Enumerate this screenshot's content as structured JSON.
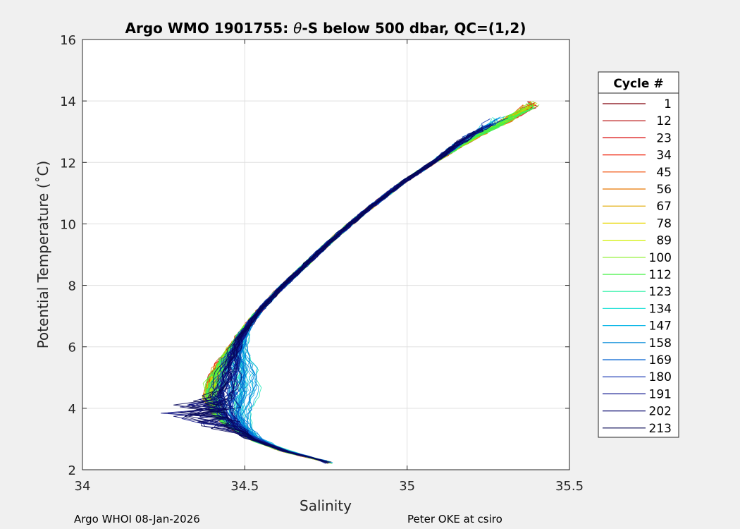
{
  "chart_data": {
    "type": "line",
    "title_prefix": "Argo WMO 1901755: ",
    "title_theta": "θ",
    "title_suffix": "-S below 500 dbar,  QC=(1,2)",
    "xlabel": "Salinity",
    "ylabel": "Potential Temperature (˚C)",
    "xlim": [
      34,
      35.5
    ],
    "ylim": [
      2,
      16
    ],
    "xticks": [
      34,
      34.5,
      35,
      35.5
    ],
    "xtick_labels": [
      "34",
      "34.5",
      "35",
      "35.5"
    ],
    "yticks": [
      2,
      4,
      6,
      8,
      10,
      12,
      14,
      16
    ],
    "ytick_labels": [
      "2",
      "4",
      "6",
      "8",
      "10",
      "12",
      "14",
      "16"
    ],
    "grid": true,
    "legend": {
      "title": "Cycle #",
      "placement": "outside-right",
      "entries": [
        {
          "label": "1",
          "color": "#80000a"
        },
        {
          "label": "12",
          "color": "#b40000"
        },
        {
          "label": "23",
          "color": "#d70000"
        },
        {
          "label": "34",
          "color": "#ee1800"
        },
        {
          "label": "45",
          "color": "#f04a00"
        },
        {
          "label": "56",
          "color": "#e87800"
        },
        {
          "label": "67",
          "color": "#e0a800"
        },
        {
          "label": "78",
          "color": "#e8d800"
        },
        {
          "label": "89",
          "color": "#d0f000"
        },
        {
          "label": "100",
          "color": "#88f020"
        },
        {
          "label": "112",
          "color": "#40f040"
        },
        {
          "label": "123",
          "color": "#20f0a0"
        },
        {
          "label": "134",
          "color": "#20e0d8"
        },
        {
          "label": "147",
          "color": "#10b8e8"
        },
        {
          "label": "158",
          "color": "#0088d8"
        },
        {
          "label": "169",
          "color": "#0060d0"
        },
        {
          "label": "180",
          "color": "#1030b0"
        },
        {
          "label": "191",
          "color": "#101890"
        },
        {
          "label": "202",
          "color": "#0a0a70"
        },
        {
          "label": "213",
          "color": "#050550"
        }
      ]
    },
    "series_spine": [
      {
        "s": 34.76,
        "t": 2.25
      },
      {
        "s": 34.62,
        "t": 2.6
      },
      {
        "s": 34.52,
        "t": 3.0
      },
      {
        "s": 34.46,
        "t": 3.4
      },
      {
        "s": 34.42,
        "t": 3.8
      },
      {
        "s": 34.4,
        "t": 4.3
      },
      {
        "s": 34.41,
        "t": 4.9
      },
      {
        "s": 34.44,
        "t": 5.6
      },
      {
        "s": 34.48,
        "t": 6.3
      },
      {
        "s": 34.53,
        "t": 7.0
      },
      {
        "s": 34.6,
        "t": 7.8
      },
      {
        "s": 34.68,
        "t": 8.6
      },
      {
        "s": 34.77,
        "t": 9.5
      },
      {
        "s": 34.87,
        "t": 10.4
      },
      {
        "s": 34.98,
        "t": 11.3
      },
      {
        "s": 35.08,
        "t": 12.0
      },
      {
        "s": 35.18,
        "t": 12.7
      },
      {
        "s": 35.28,
        "t": 13.3
      },
      {
        "s": 35.36,
        "t": 13.8
      }
    ],
    "salinity_range_observed": [
      34.18,
      35.42
    ],
    "temperature_range_observed": [
      2.2,
      14.0
    ]
  },
  "footer": {
    "left": "Argo WHOI 08-Jan-2026",
    "right": "Peter OKE at csiro"
  }
}
